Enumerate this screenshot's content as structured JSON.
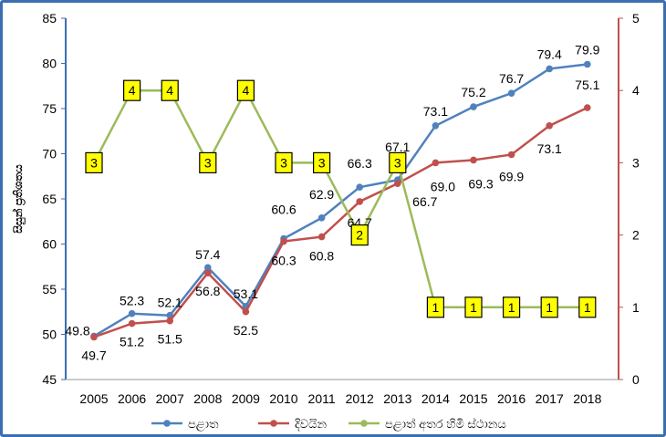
{
  "colors": {
    "series1": "#4f81bd",
    "series2": "#c0504d",
    "series3": "#9bbb59",
    "axis_left": "#3a6fb0",
    "axis_right": "#c0504d",
    "rank_box_fill": "#ffff00"
  },
  "chart_data": {
    "type": "line",
    "title": "",
    "xlabel": "",
    "ylabel": "සිසුන් ප්‍රතිශතය",
    "ylim": [
      45,
      85
    ],
    "y2lim": [
      0,
      5
    ],
    "yticks": [
      "45",
      "50",
      "55",
      "60",
      "65",
      "70",
      "75",
      "80",
      "85"
    ],
    "y2ticks": [
      "0",
      "1",
      "2",
      "3",
      "4",
      "5"
    ],
    "legend_position": "bottom",
    "grid": false,
    "x": [
      "2005",
      "2006",
      "2007",
      "2008",
      "2009",
      "2010",
      "2011",
      "2012",
      "2013",
      "2014",
      "2015",
      "2016",
      "2017",
      "2018"
    ],
    "series": [
      {
        "name": "පළාත",
        "axis": "left",
        "values": [
          49.8,
          52.3,
          52.1,
          57.4,
          53.1,
          60.6,
          62.9,
          66.3,
          67.1,
          73.1,
          75.2,
          76.7,
          79.4,
          79.9
        ],
        "labels": [
          "49.8",
          "52.3",
          "52.1",
          "57.4",
          "53.1",
          "60.6",
          "62.9",
          "66.3",
          "67.1",
          "73.1",
          "75.2",
          "76.7",
          "79.4",
          "79.9"
        ]
      },
      {
        "name": "දිවයින",
        "axis": "left",
        "values": [
          49.7,
          51.2,
          51.5,
          56.8,
          52.5,
          60.3,
          60.8,
          64.7,
          66.7,
          69.0,
          69.3,
          69.9,
          73.1,
          75.1
        ],
        "labels": [
          "49.7",
          "51.2",
          "51.5",
          "56.8",
          "52.5",
          "60.3",
          "60.8",
          "64.7",
          "66.7",
          "69.0",
          "69.3",
          "69.9",
          "73.1",
          "75.1"
        ]
      },
      {
        "name": "පළාත් අතර හිමි ස්ථානය",
        "axis": "right",
        "values": [
          3,
          4,
          4,
          3,
          4,
          3,
          3,
          2,
          3,
          1,
          1,
          1,
          1,
          1
        ],
        "labels": [
          "3",
          "4",
          "4",
          "3",
          "4",
          "3",
          "3",
          "2",
          "3",
          "1",
          "1",
          "1",
          "1",
          "1"
        ]
      }
    ]
  }
}
